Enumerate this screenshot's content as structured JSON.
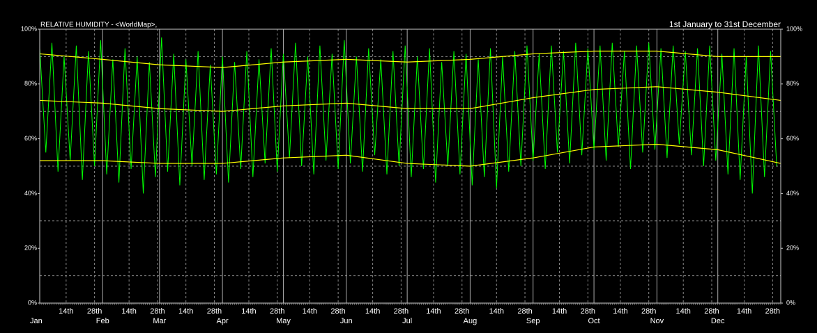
{
  "chart_data": {
    "type": "line",
    "title": "RELATIVE HUMIDITY - <WorldMap>,",
    "subtitle": "1st January to 31st December",
    "xlim": [
      0,
      365
    ],
    "ylim": [
      0,
      100
    ],
    "yticks": [
      {
        "value": 0,
        "label": "0%"
      },
      {
        "value": 20,
        "label": "20%"
      },
      {
        "value": 40,
        "label": "40%"
      },
      {
        "value": 60,
        "label": "60%"
      },
      {
        "value": 80,
        "label": "80%"
      },
      {
        "value": 100,
        "label": "100%"
      }
    ],
    "ygrid_dashed": [
      10,
      30,
      50,
      70,
      90
    ],
    "xticks": [
      {
        "value": 0,
        "label": "Jan"
      },
      {
        "value": 31,
        "label": "Feb"
      },
      {
        "value": 59,
        "label": "Mar"
      },
      {
        "value": 90,
        "label": "Apr"
      },
      {
        "value": 120,
        "label": "May"
      },
      {
        "value": 151,
        "label": "Jun"
      },
      {
        "value": 181,
        "label": "Jul"
      },
      {
        "value": 212,
        "label": "Aug"
      },
      {
        "value": 243,
        "label": "Sep"
      },
      {
        "value": 273,
        "label": "Oct"
      },
      {
        "value": 304,
        "label": "Nov"
      },
      {
        "value": 334,
        "label": "Dec"
      }
    ],
    "xticks_minor": [
      {
        "value": 13,
        "label": "14th"
      },
      {
        "value": 27,
        "label": "28th"
      },
      {
        "value": 44,
        "label": "14th"
      },
      {
        "value": 58,
        "label": "28th"
      },
      {
        "value": 72,
        "label": "14th"
      },
      {
        "value": 86,
        "label": "28th"
      },
      {
        "value": 103,
        "label": "14th"
      },
      {
        "value": 117,
        "label": "28th"
      },
      {
        "value": 133,
        "label": "14th"
      },
      {
        "value": 147,
        "label": "28th"
      },
      {
        "value": 164,
        "label": "14th"
      },
      {
        "value": 178,
        "label": "28th"
      },
      {
        "value": 194,
        "label": "14th"
      },
      {
        "value": 208,
        "label": "28th"
      },
      {
        "value": 225,
        "label": "14th"
      },
      {
        "value": 239,
        "label": "28th"
      },
      {
        "value": 256,
        "label": "14th"
      },
      {
        "value": 270,
        "label": "28th"
      },
      {
        "value": 286,
        "label": "14th"
      },
      {
        "value": 300,
        "label": "28th"
      },
      {
        "value": 317,
        "label": "14th"
      },
      {
        "value": 331,
        "label": "28th"
      },
      {
        "value": 347,
        "label": "14th"
      },
      {
        "value": 361,
        "label": "28th"
      }
    ],
    "series": [
      {
        "color": "#00ff00",
        "x": [
          0,
          3,
          6,
          9,
          12,
          15,
          18,
          21,
          24,
          27,
          30,
          33,
          36,
          39,
          42,
          45,
          48,
          51,
          54,
          57,
          60,
          63,
          66,
          69,
          72,
          75,
          78,
          81,
          84,
          87,
          90,
          93,
          96,
          99,
          102,
          105,
          108,
          111,
          114,
          117,
          120,
          123,
          126,
          129,
          132,
          135,
          138,
          141,
          144,
          147,
          150,
          153,
          156,
          159,
          162,
          165,
          168,
          171,
          174,
          177,
          180,
          183,
          186,
          189,
          192,
          195,
          198,
          201,
          204,
          207,
          210,
          213,
          216,
          219,
          222,
          225,
          228,
          231,
          234,
          237,
          240,
          243,
          246,
          249,
          252,
          255,
          258,
          261,
          264,
          267,
          270,
          273,
          276,
          279,
          282,
          285,
          288,
          291,
          294,
          297,
          300,
          303,
          306,
          309,
          312,
          315,
          318,
          321,
          324,
          327,
          330,
          333,
          336,
          339,
          342,
          345,
          348,
          351,
          354,
          357,
          360,
          363
        ],
        "values": [
          93,
          55,
          95,
          48,
          90,
          52,
          94,
          45,
          92,
          50,
          96,
          47,
          89,
          44,
          93,
          49,
          90,
          40,
          88,
          46,
          97,
          48,
          91,
          43,
          89,
          50,
          92,
          45,
          87,
          47,
          90,
          44,
          88,
          49,
          92,
          46,
          89,
          51,
          93,
          48,
          91,
          53,
          95,
          50,
          90,
          47,
          94,
          52,
          91,
          49,
          96,
          51,
          90,
          48,
          93,
          54,
          89,
          47,
          92,
          50,
          94,
          46,
          90,
          49,
          93,
          44,
          88,
          50,
          92,
          47,
          91,
          43,
          89,
          46,
          93,
          42,
          90,
          48,
          92,
          50,
          94,
          52,
          91,
          49,
          94,
          55,
          92,
          51,
          95,
          54,
          93,
          56,
          94,
          52,
          95,
          57,
          92,
          49,
          94,
          55,
          95,
          56,
          93,
          53,
          94,
          58,
          92,
          54,
          93,
          50,
          94,
          52,
          91,
          47,
          93,
          45,
          90,
          40,
          94,
          46,
          92,
          50
        ]
      },
      {
        "color": "#ffff00",
        "x": [
          0,
          31,
          59,
          90,
          120,
          151,
          181,
          212,
          243,
          273,
          304,
          334,
          365
        ],
        "values": [
          91,
          89,
          87,
          86,
          88,
          89,
          88,
          89,
          91,
          92,
          92,
          90,
          90
        ]
      },
      {
        "color": "#ffff00",
        "x": [
          0,
          31,
          59,
          90,
          120,
          151,
          181,
          212,
          243,
          273,
          304,
          334,
          365
        ],
        "values": [
          74,
          73,
          71,
          70,
          72,
          73,
          71,
          71,
          75,
          78,
          79,
          77,
          74
        ]
      },
      {
        "color": "#ffff00",
        "x": [
          0,
          31,
          59,
          90,
          120,
          151,
          181,
          212,
          243,
          273,
          304,
          334,
          365
        ],
        "values": [
          52,
          52,
          51,
          51,
          53,
          54,
          51,
          50,
          53,
          57,
          58,
          56,
          51
        ]
      }
    ]
  }
}
